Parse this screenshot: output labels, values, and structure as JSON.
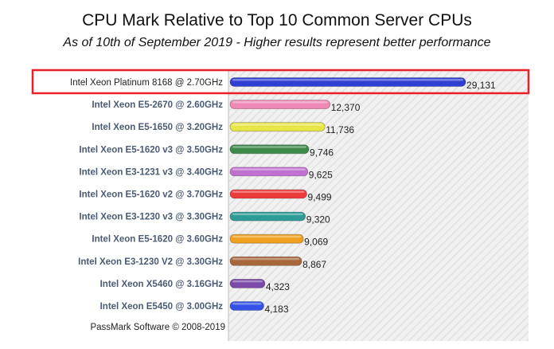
{
  "chart_data": {
    "type": "bar",
    "orientation": "horizontal",
    "title": "CPU Mark Relative to Top 10 Common Server CPUs",
    "subtitle": "As of 10th of September 2019 - Higher results represent better performance",
    "categories": [
      "Intel Xeon Platinum 8168 @ 2.70GHz",
      "Intel Xeon E5-2670 @ 2.60GHz",
      "Intel Xeon E5-1650 @ 3.20GHz",
      "Intel Xeon E5-1620 v3 @ 3.50GHz",
      "Intel Xeon E3-1231 v3 @ 3.40GHz",
      "Intel Xeon E5-1620 v2 @ 3.70GHz",
      "Intel Xeon E3-1230 v3 @ 3.30GHz",
      "Intel Xeon E5-1620 @ 3.60GHz",
      "Intel Xeon E3-1230 V2 @ 3.30GHz",
      "Intel Xeon X5460 @ 3.16GHz",
      "Intel Xeon E5450 @ 3.00GHz"
    ],
    "values": [
      29131,
      12370,
      11736,
      9746,
      9625,
      9499,
      9320,
      9069,
      8867,
      4323,
      4183
    ],
    "value_labels": [
      "29,131",
      "12,370",
      "11,736",
      "9,746",
      "9,625",
      "9,499",
      "9,320",
      "9,069",
      "8,867",
      "4,323",
      "4,183"
    ],
    "colors": [
      "#2f3fd4",
      "#ee88b4",
      "#e6e645",
      "#3e8a4a",
      "#c071cf",
      "#ec3b3b",
      "#2d9b97",
      "#f0a020",
      "#a8683c",
      "#7b4aa8",
      "#3452e8"
    ],
    "highlight_index": 0,
    "highlight_color": "#e8202a",
    "xlim": [
      0,
      30000
    ],
    "grid": false,
    "background_pattern": "diagonal-hatch",
    "footer": "PassMark Software © 2008-2019"
  }
}
